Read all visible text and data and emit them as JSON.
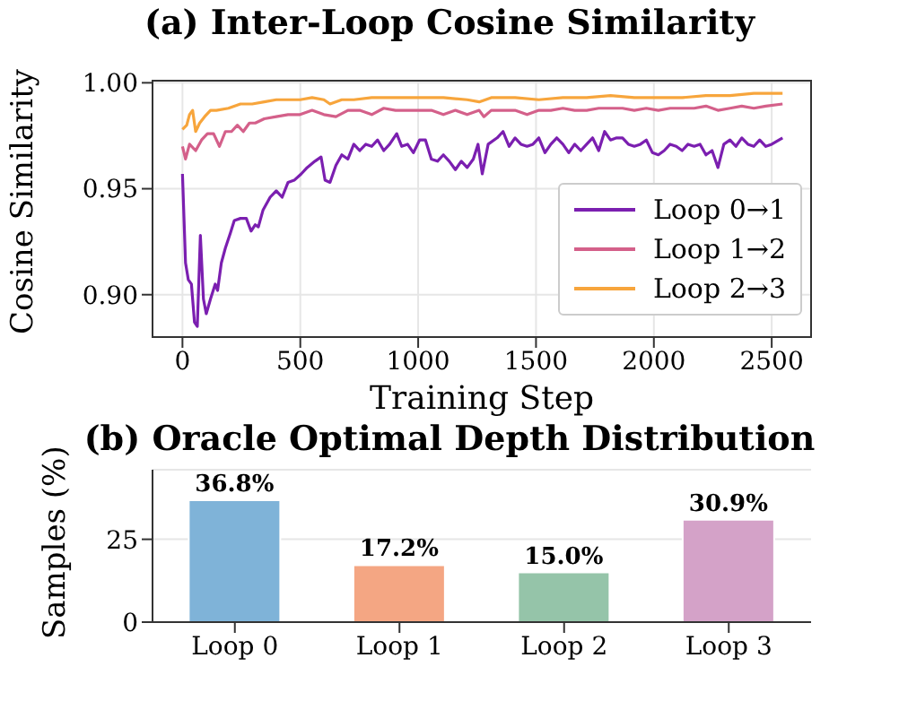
{
  "chart_data": [
    {
      "type": "line",
      "title": "(a) Inter-Loop Cosine Similarity",
      "xlabel": "Training Step",
      "ylabel": "Cosine Similarity",
      "xlim": [
        -127,
        2667
      ],
      "ylim": [
        0.88,
        1.001
      ],
      "xticks": [
        0,
        500,
        1000,
        1500,
        2000,
        2500
      ],
      "yticks": [
        {
          "value": 0.9,
          "label": "0.90"
        },
        0.95,
        {
          "value": 1.0,
          "label": "1.00"
        }
      ],
      "grid": true,
      "legend": "bottom right",
      "series": [
        {
          "name": "Loop 0→1",
          "color": "#7b1fb0",
          "x": [
            0,
            13,
            25,
            38,
            51,
            63,
            76,
            89,
            101,
            119,
            139,
            149,
            165,
            182,
            203,
            220,
            246,
            271,
            291,
            309,
            322,
            342,
            372,
            398,
            423,
            448,
            474,
            504,
            529,
            562,
            588,
            605,
            626,
            651,
            676,
            702,
            727,
            752,
            778,
            803,
            828,
            854,
            879,
            909,
            930,
            955,
            980,
            1006,
            1031,
            1056,
            1082,
            1107,
            1132,
            1158,
            1183,
            1208,
            1234,
            1254,
            1272,
            1297,
            1335,
            1360,
            1386,
            1411,
            1436,
            1462,
            1487,
            1512,
            1538,
            1563,
            1588,
            1614,
            1639,
            1664,
            1690,
            1715,
            1740,
            1766,
            1791,
            1816,
            1842,
            1867,
            1892,
            1917,
            1943,
            1968,
            1994,
            2019,
            2044,
            2069,
            2095,
            2120,
            2145,
            2171,
            2196,
            2221,
            2247,
            2272,
            2297,
            2323,
            2348,
            2373,
            2399,
            2424,
            2449,
            2475,
            2500,
            2546
          ],
          "values": [
            0.957,
            0.915,
            0.907,
            0.905,
            0.887,
            0.885,
            0.928,
            0.898,
            0.891,
            0.898,
            0.905,
            0.902,
            0.915,
            0.922,
            0.929,
            0.935,
            0.936,
            0.936,
            0.93,
            0.933,
            0.932,
            0.94,
            0.946,
            0.949,
            0.946,
            0.953,
            0.954,
            0.957,
            0.96,
            0.963,
            0.965,
            0.954,
            0.953,
            0.961,
            0.966,
            0.964,
            0.971,
            0.968,
            0.971,
            0.97,
            0.973,
            0.968,
            0.971,
            0.976,
            0.97,
            0.971,
            0.967,
            0.973,
            0.973,
            0.964,
            0.963,
            0.966,
            0.963,
            0.959,
            0.963,
            0.96,
            0.964,
            0.971,
            0.957,
            0.971,
            0.974,
            0.977,
            0.97,
            0.974,
            0.971,
            0.97,
            0.971,
            0.974,
            0.967,
            0.971,
            0.974,
            0.971,
            0.967,
            0.971,
            0.968,
            0.971,
            0.974,
            0.968,
            0.977,
            0.973,
            0.974,
            0.974,
            0.971,
            0.97,
            0.971,
            0.973,
            0.967,
            0.966,
            0.968,
            0.971,
            0.97,
            0.968,
            0.971,
            0.97,
            0.971,
            0.966,
            0.968,
            0.96,
            0.971,
            0.973,
            0.97,
            0.974,
            0.971,
            0.97,
            0.973,
            0.97,
            0.971,
            0.974
          ]
        },
        {
          "name": "Loop 1→2",
          "color": "#d4608a",
          "x": [
            0,
            13,
            30,
            56,
            81,
            106,
            132,
            157,
            182,
            208,
            233,
            258,
            284,
            309,
            347,
            398,
            448,
            499,
            550,
            600,
            651,
            702,
            752,
            803,
            854,
            904,
            955,
            1006,
            1056,
            1107,
            1158,
            1208,
            1259,
            1279,
            1310,
            1360,
            1411,
            1462,
            1512,
            1563,
            1614,
            1664,
            1715,
            1766,
            1816,
            1867,
            1917,
            1968,
            2019,
            2069,
            2120,
            2171,
            2221,
            2272,
            2323,
            2373,
            2424,
            2475,
            2546
          ],
          "values": [
            0.97,
            0.964,
            0.971,
            0.968,
            0.973,
            0.976,
            0.976,
            0.97,
            0.977,
            0.977,
            0.98,
            0.977,
            0.981,
            0.981,
            0.983,
            0.984,
            0.985,
            0.985,
            0.987,
            0.985,
            0.984,
            0.987,
            0.987,
            0.985,
            0.988,
            0.987,
            0.987,
            0.987,
            0.987,
            0.985,
            0.987,
            0.985,
            0.987,
            0.984,
            0.987,
            0.987,
            0.987,
            0.985,
            0.987,
            0.987,
            0.988,
            0.987,
            0.987,
            0.988,
            0.988,
            0.988,
            0.987,
            0.988,
            0.987,
            0.988,
            0.988,
            0.988,
            0.989,
            0.987,
            0.988,
            0.989,
            0.988,
            0.989,
            0.99
          ]
        },
        {
          "name": "Loop 2→3",
          "color": "#f7a53c",
          "x": [
            0,
            18,
            30,
            43,
            56,
            73,
            94,
            119,
            144,
            195,
            246,
            296,
            347,
            398,
            448,
            499,
            550,
            600,
            626,
            676,
            727,
            803,
            904,
            1006,
            1107,
            1208,
            1259,
            1310,
            1411,
            1512,
            1614,
            1715,
            1816,
            1917,
            2019,
            2120,
            2221,
            2323,
            2424,
            2546
          ],
          "values": [
            0.978,
            0.98,
            0.985,
            0.987,
            0.977,
            0.981,
            0.984,
            0.987,
            0.987,
            0.988,
            0.99,
            0.99,
            0.991,
            0.992,
            0.992,
            0.992,
            0.993,
            0.992,
            0.99,
            0.992,
            0.992,
            0.993,
            0.993,
            0.993,
            0.993,
            0.992,
            0.991,
            0.993,
            0.993,
            0.992,
            0.993,
            0.993,
            0.994,
            0.993,
            0.993,
            0.993,
            0.994,
            0.994,
            0.995,
            0.995
          ]
        }
      ]
    },
    {
      "type": "bar",
      "title": "(b) Oracle Optimal Depth Distribution",
      "ylabel": "Samples (%)",
      "categories": [
        "Loop 0",
        "Loop 1",
        "Loop 2",
        "Loop 3"
      ],
      "values": [
        36.8,
        17.2,
        15.0,
        30.9
      ],
      "colors": [
        "#7fb3d8",
        "#f4a683",
        "#95c4a9",
        "#d4a2c8"
      ],
      "value_labels": [
        "36.8%",
        "17.2%",
        "15.0%",
        "30.9%"
      ],
      "ylim": [
        0,
        46
      ],
      "yticks": [
        0,
        25
      ],
      "grid": "y"
    }
  ]
}
